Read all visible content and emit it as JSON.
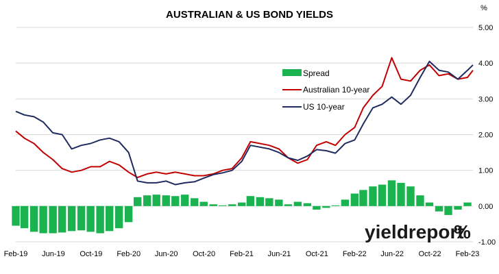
{
  "chart_data": {
    "type": "line",
    "title": "AUSTRALIAN & US BOND YIELDS",
    "unit_label": "%",
    "xlabel": "",
    "ylabel": "",
    "ylim": [
      -1.0,
      5.0
    ],
    "y_ticks": [
      "5.00",
      "4.00",
      "3.00",
      "2.00",
      "1.00",
      "0.00",
      "-1.00"
    ],
    "x_ticks": [
      "Feb-19",
      "Jun-19",
      "Oct-19",
      "Feb-20",
      "Jun-20",
      "Oct-20",
      "Feb-21",
      "Jun-21",
      "Oct-21",
      "Feb-22",
      "Jun-22",
      "Oct-22",
      "Feb-23"
    ],
    "grid": true,
    "legend_position": "center-right",
    "colors": {
      "spread": "#1ab34f",
      "australian": "#c00000",
      "us": "#1f2a5e"
    },
    "series": [
      {
        "name": "Spread",
        "kind": "bar",
        "x": [
          "2019-02-01",
          "2019-03-01",
          "2019-04-01",
          "2019-05-01",
          "2019-06-01",
          "2019-07-01",
          "2019-08-01",
          "2019-09-01",
          "2019-10-01",
          "2019-11-01",
          "2019-12-01",
          "2020-01-01",
          "2020-02-01",
          "2020-03-01",
          "2020-04-01",
          "2020-05-01",
          "2020-06-01",
          "2020-07-01",
          "2020-08-01",
          "2020-09-01",
          "2020-10-01",
          "2020-11-01",
          "2020-12-01",
          "2021-01-01",
          "2021-02-01",
          "2021-03-01",
          "2021-04-01",
          "2021-05-01",
          "2021-06-01",
          "2021-07-01",
          "2021-08-01",
          "2021-09-01",
          "2021-10-01",
          "2021-11-01",
          "2021-12-01",
          "2022-01-01",
          "2022-02-01",
          "2022-03-01",
          "2022-04-01",
          "2022-05-01",
          "2022-06-01",
          "2022-07-01",
          "2022-08-01",
          "2022-09-01",
          "2022-10-01",
          "2022-11-01",
          "2022-12-01",
          "2023-01-01",
          "2023-02-01",
          "2023-03-01"
        ],
        "values": [
          -0.55,
          -0.62,
          -0.72,
          -0.76,
          -0.76,
          -0.74,
          -0.7,
          -0.68,
          -0.72,
          -0.76,
          -0.7,
          -0.62,
          -0.45,
          0.25,
          0.3,
          0.32,
          0.3,
          0.28,
          0.32,
          0.22,
          0.12,
          0.05,
          0.02,
          0.05,
          0.1,
          0.28,
          0.25,
          0.22,
          0.18,
          0.05,
          0.12,
          0.08,
          -0.1,
          -0.05,
          0.02,
          0.18,
          0.35,
          0.45,
          0.55,
          0.6,
          0.72,
          0.65,
          0.55,
          0.3,
          0.1,
          -0.15,
          -0.25,
          -0.1,
          0.1,
          -0.05
        ]
      },
      {
        "name": "Australian 10-year",
        "kind": "line",
        "x": [
          "2019-02-01",
          "2019-03-01",
          "2019-04-01",
          "2019-05-01",
          "2019-06-01",
          "2019-07-01",
          "2019-08-01",
          "2019-09-01",
          "2019-10-01",
          "2019-11-01",
          "2019-12-01",
          "2020-01-01",
          "2020-02-01",
          "2020-03-01",
          "2020-04-01",
          "2020-05-01",
          "2020-06-01",
          "2020-07-01",
          "2020-08-01",
          "2020-09-01",
          "2020-10-01",
          "2020-11-01",
          "2020-12-01",
          "2021-01-01",
          "2021-02-01",
          "2021-03-01",
          "2021-04-01",
          "2021-05-01",
          "2021-06-01",
          "2021-07-01",
          "2021-08-01",
          "2021-09-01",
          "2021-10-01",
          "2021-11-01",
          "2021-12-01",
          "2022-01-01",
          "2022-02-01",
          "2022-03-01",
          "2022-04-01",
          "2022-05-01",
          "2022-06-01",
          "2022-07-01",
          "2022-08-01",
          "2022-09-01",
          "2022-10-01",
          "2022-11-01",
          "2022-12-01",
          "2023-01-01",
          "2023-02-01",
          "2023-03-01"
        ],
        "values": [
          2.1,
          1.9,
          1.75,
          1.5,
          1.3,
          1.05,
          0.95,
          1.0,
          1.1,
          1.1,
          1.25,
          1.15,
          0.95,
          0.8,
          0.9,
          0.95,
          0.9,
          0.95,
          0.9,
          0.85,
          0.85,
          0.9,
          1.0,
          1.05,
          1.35,
          1.8,
          1.75,
          1.7,
          1.6,
          1.35,
          1.2,
          1.3,
          1.7,
          1.8,
          1.7,
          2.0,
          2.2,
          2.75,
          3.1,
          3.35,
          4.15,
          3.55,
          3.5,
          3.8,
          3.95,
          3.65,
          3.7,
          3.55,
          3.6,
          3.8
        ]
      },
      {
        "name": "US 10-year",
        "kind": "line",
        "x": [
          "2019-02-01",
          "2019-03-01",
          "2019-04-01",
          "2019-05-01",
          "2019-06-01",
          "2019-07-01",
          "2019-08-01",
          "2019-09-01",
          "2019-10-01",
          "2019-11-01",
          "2019-12-01",
          "2020-01-01",
          "2020-02-01",
          "2020-03-01",
          "2020-04-01",
          "2020-05-01",
          "2020-06-01",
          "2020-07-01",
          "2020-08-01",
          "2020-09-01",
          "2020-10-01",
          "2020-11-01",
          "2020-12-01",
          "2021-01-01",
          "2021-02-01",
          "2021-03-01",
          "2021-04-01",
          "2021-05-01",
          "2021-06-01",
          "2021-07-01",
          "2021-08-01",
          "2021-09-01",
          "2021-10-01",
          "2021-11-01",
          "2021-12-01",
          "2022-01-01",
          "2022-02-01",
          "2022-03-01",
          "2022-04-01",
          "2022-05-01",
          "2022-06-01",
          "2022-07-01",
          "2022-08-01",
          "2022-09-01",
          "2022-10-01",
          "2022-11-01",
          "2022-12-01",
          "2023-01-01",
          "2023-02-01",
          "2023-03-01"
        ],
        "values": [
          2.65,
          2.55,
          2.5,
          2.35,
          2.05,
          2.0,
          1.6,
          1.7,
          1.75,
          1.85,
          1.9,
          1.8,
          1.5,
          0.7,
          0.65,
          0.65,
          0.7,
          0.6,
          0.65,
          0.68,
          0.78,
          0.88,
          0.93,
          1.0,
          1.25,
          1.7,
          1.65,
          1.6,
          1.5,
          1.35,
          1.28,
          1.4,
          1.58,
          1.55,
          1.48,
          1.75,
          1.85,
          2.3,
          2.75,
          2.85,
          3.05,
          2.85,
          3.1,
          3.6,
          4.05,
          3.8,
          3.75,
          3.55,
          3.8,
          3.95
        ]
      }
    ]
  },
  "brand": {
    "name_bold": "yieldreport",
    "symbol": "%"
  }
}
